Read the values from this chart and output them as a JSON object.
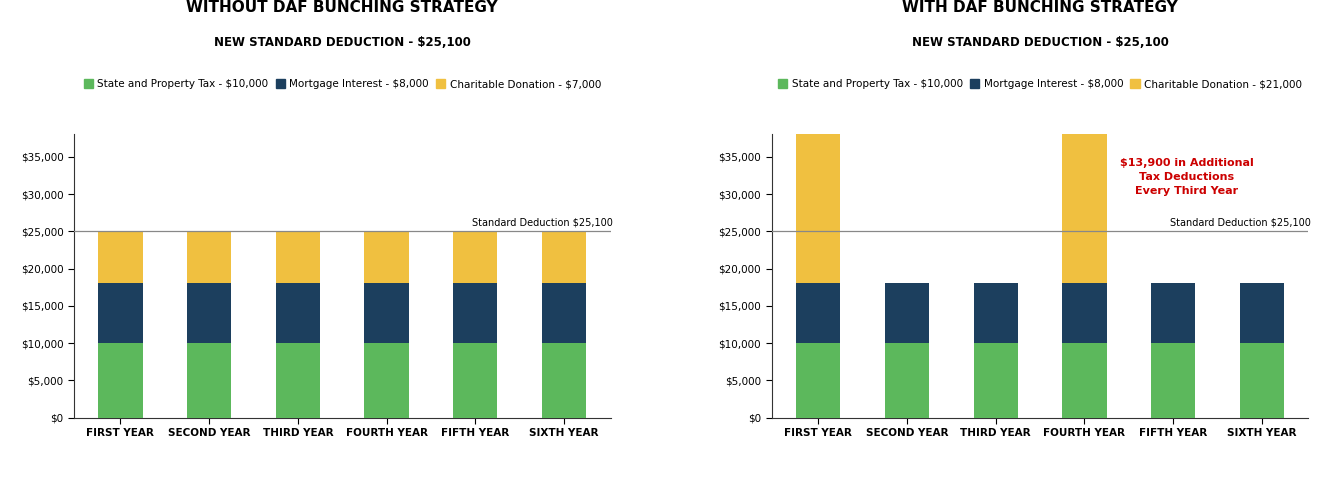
{
  "left_title": "WITHOUT DAF BUNCHING STRATEGY",
  "left_subtitle": "NEW STANDARD DEDUCTION - $25,100",
  "right_title": "WITH DAF BUNCHING STRATEGY",
  "right_subtitle": "NEW STANDARD DEDUCTION - $25,100",
  "categories": [
    "FIRST YEAR",
    "SECOND YEAR",
    "THIRD YEAR",
    "FOURTH YEAR",
    "FIFTH YEAR",
    "SIXTH YEAR"
  ],
  "green_color": "#5cb85c",
  "navy_color": "#1c3f5e",
  "yellow_color": "#f0c040",
  "standard_deduction_line": 25100,
  "standard_deduction_label": "Standard Deduction $25,100",
  "left_legend": [
    {
      "label": "State and Property Tax - $10,000",
      "color": "#5cb85c"
    },
    {
      "label": "Mortgage Interest - $8,000",
      "color": "#1c3f5e"
    },
    {
      "label": "Charitable Donation - $7,000",
      "color": "#f0c040"
    }
  ],
  "right_legend": [
    {
      "label": "State and Property Tax - $10,000",
      "color": "#5cb85c"
    },
    {
      "label": "Mortgage Interest - $8,000",
      "color": "#1c3f5e"
    },
    {
      "label": "Charitable Donation - $21,000",
      "color": "#f0c040"
    }
  ],
  "left_green": [
    10000,
    10000,
    10000,
    10000,
    10000,
    10000
  ],
  "left_navy": [
    8000,
    8000,
    8000,
    8000,
    8000,
    8000
  ],
  "left_yellow": [
    7000,
    7000,
    7000,
    7000,
    7000,
    7000
  ],
  "right_green": [
    10000,
    10000,
    10000,
    10000,
    10000,
    10000
  ],
  "right_navy": [
    8000,
    8000,
    8000,
    8000,
    8000,
    8000
  ],
  "right_yellow": [
    21000,
    0,
    0,
    21000,
    0,
    0
  ],
  "ylim": [
    0,
    38000
  ],
  "yticks": [
    0,
    5000,
    10000,
    15000,
    20000,
    25000,
    30000,
    35000
  ],
  "annotation_text": "$13,900 in Additional\nTax Deductions\nEvery Third Year",
  "annotation_color": "#cc0000",
  "background_color": "#ffffff",
  "bar_width": 0.5,
  "title_fontsize": 11,
  "subtitle_fontsize": 8.5,
  "legend_fontsize": 7.5,
  "tick_fontsize": 7.5,
  "std_line_label_fontsize": 7,
  "annotation_fontsize": 8
}
